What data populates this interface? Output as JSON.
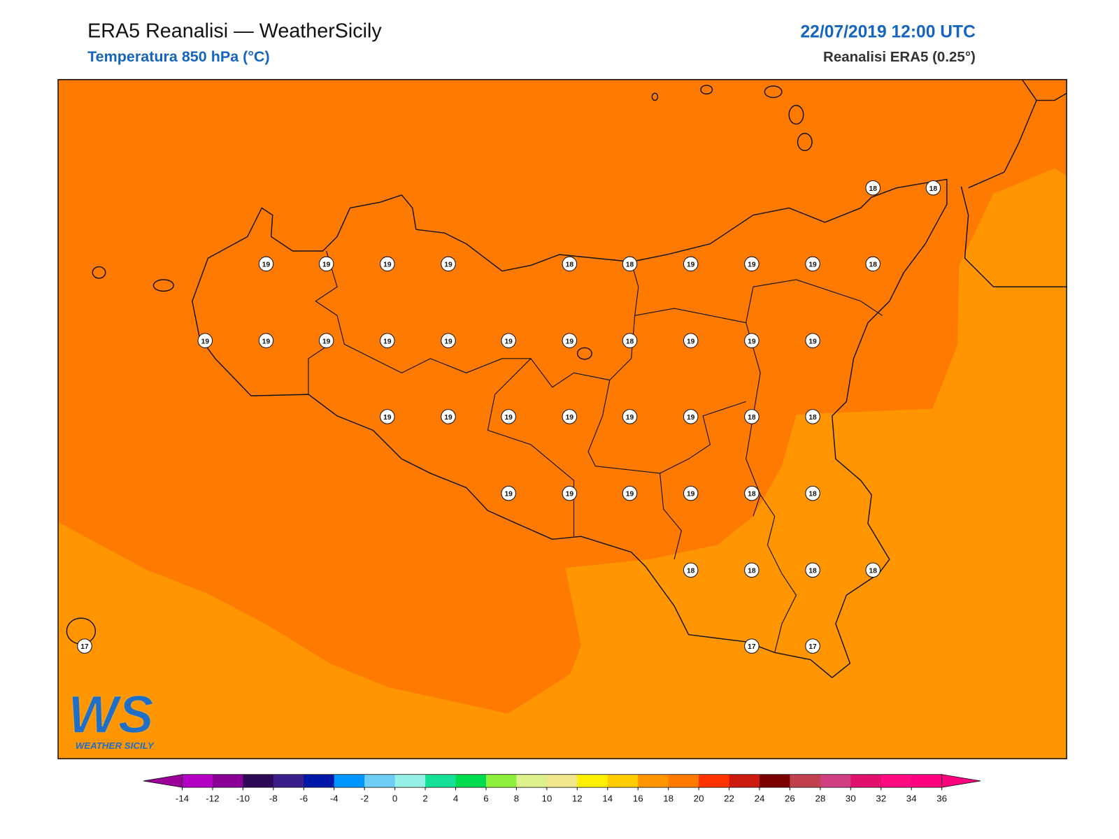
{
  "header": {
    "title": "ERA5 Reanalisi — WeatherSicily",
    "subtitle": "Temperatura 850 hPa (°C)",
    "date": "22/07/2019 12:00 UTC",
    "source": "Reanalisi ERA5 (0.25°)"
  },
  "map": {
    "point_labels": [
      18,
      18,
      19,
      19,
      19,
      19,
      18,
      18,
      19,
      19,
      19,
      18,
      19,
      19,
      19,
      19,
      19,
      19,
      19,
      18,
      19,
      19,
      19,
      19,
      19,
      19,
      19,
      19,
      19,
      18,
      18,
      19,
      19,
      19,
      19,
      18,
      18,
      18,
      18,
      18,
      18,
      17,
      17,
      17
    ],
    "field_levels": [
      18,
      16
    ]
  },
  "colorbar": {
    "ticks": [
      -14,
      -12,
      -10,
      -8,
      -6,
      -4,
      -2,
      0,
      2,
      4,
      6,
      8,
      10,
      12,
      14,
      16,
      18,
      20,
      22,
      24,
      26,
      28,
      30,
      32,
      34,
      36
    ],
    "colors": [
      "#b400c3",
      "#8a0096",
      "#2c0a55",
      "#3a1f8a",
      "#0018a8",
      "#0096ff",
      "#6ecdf5",
      "#96f0e6",
      "#16e096",
      "#00dc50",
      "#8cf03c",
      "#dcf08c",
      "#f0e68c",
      "#ffef00",
      "#ffcc00",
      "#ff9500",
      "#ff7a00",
      "#ff3300",
      "#cc1a0f",
      "#7a0000",
      "#c04050",
      "#d04080",
      "#e0106c",
      "#ff0a80",
      "#ff0080"
    ],
    "under_color": "#9b009b",
    "over_color": "#ff007f"
  },
  "logo": {
    "mark": "WS",
    "name": "WEATHER SICILY"
  }
}
